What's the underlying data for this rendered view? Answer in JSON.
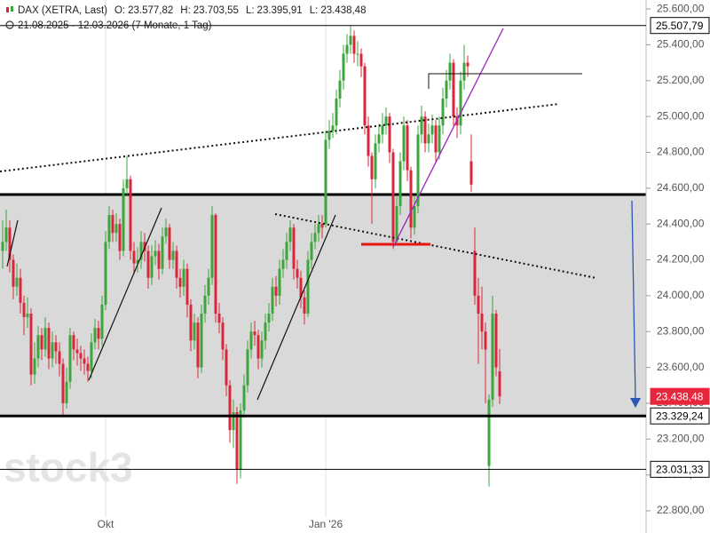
{
  "chart_data": {
    "type": "candlestick",
    "title": "DAX (XETRA, Last)",
    "quote_items": [
      {
        "label": "O:",
        "text": "23.577,82"
      },
      {
        "label": "H:",
        "text": "23.703,55"
      },
      {
        "label": "L:",
        "text": "23.395,91"
      },
      {
        "label": "L:",
        "text": "23.438,48"
      }
    ],
    "subtitle": "21.08.2025 - 12.03.2026 (7 Monate, 1 Tag)",
    "watermark": "stock3",
    "up_color": "#3ca53c",
    "down_color": "#d9263d",
    "xlim": [
      -0.75,
      181.25
    ],
    "xticks": [
      {
        "value": 29,
        "label": "Okt"
      },
      {
        "value": 91,
        "label": "Jan '26"
      }
    ],
    "ylim": [
      22676,
      25650
    ],
    "yticks": [
      {
        "value": 22800,
        "label": "22.800,00"
      },
      {
        "value": 23000,
        "label": "23.000,00"
      },
      {
        "value": 23200,
        "label": "23.200,00"
      },
      {
        "value": 23400,
        "label": "23.400,00"
      },
      {
        "value": 23600,
        "label": "23.600,00"
      },
      {
        "value": 23800,
        "label": "23.800,00"
      },
      {
        "value": 24000,
        "label": "24.000,00"
      },
      {
        "value": 24200,
        "label": "24.200,00"
      },
      {
        "value": 24400,
        "label": "24.400,00"
      },
      {
        "value": 24600,
        "label": "24.600,00"
      },
      {
        "value": 24800,
        "label": "24.800,00"
      },
      {
        "value": 25000,
        "label": "25.000,00"
      },
      {
        "value": 25200,
        "label": "25.200,00"
      },
      {
        "value": 25400,
        "label": "25.400,00"
      },
      {
        "value": 25600,
        "label": "25.600,00"
      }
    ],
    "levels": [
      {
        "value": 25507.79,
        "label": "25.507,79",
        "line_width": 1
      },
      {
        "value": 23438.48,
        "label": "23.438,48",
        "line_width": 0,
        "tag_color": "#e8273c"
      },
      {
        "value": 23329.24,
        "label": "23.329,24",
        "line_width": 3
      },
      {
        "value": 23031.33,
        "label": "23.031,33",
        "line_width": 1
      }
    ],
    "open": [
      24250,
      24300,
      24380,
      24200,
      24050,
      24100,
      23960,
      23880,
      23900,
      23560,
      23650,
      23780,
      23700,
      23820,
      23650,
      23740,
      23690,
      23620,
      23400,
      23520,
      23780,
      23700,
      23680,
      23650,
      23620,
      23580,
      23740,
      23820,
      23760,
      23950,
      24300,
      24450,
      24350,
      24400,
      24250,
      24600,
      24650,
      24250,
      24180,
      24200,
      24300,
      24250,
      24100,
      24220,
      24250,
      24150,
      24330,
      24380,
      24200,
      24250,
      24100,
      24050,
      24150,
      23950,
      23750,
      23850,
      23600,
      23900,
      24000,
      24100,
      24450,
      23900,
      23850,
      23700,
      23500,
      23250,
      23350,
      23030,
      23360,
      23500,
      23700,
      23800,
      23780,
      23650,
      23750,
      23850,
      23900,
      24050,
      24000,
      24150,
      24200,
      24300,
      24380,
      24150,
      24100,
      23990,
      23900,
      24200,
      24300,
      24350,
      24400,
      24400,
      24870,
      24920,
      24950,
      25100,
      25200,
      25350,
      25400,
      25450,
      25350,
      25350,
      25280,
      24950,
      24780,
      24650,
      24850,
      24900,
      24950,
      25000,
      24800,
      24300,
      24500,
      24750,
      24950,
      24700,
      24380,
      24500,
      24900,
      25000,
      24850,
      24900,
      24950,
      24800,
      24950,
      25100,
      25200,
      25300,
      25000,
      24950,
      25200,
      25300,
      24750,
      24250,
      24000,
      23900,
      23800,
      23050,
      23420,
      23900,
      23577.82
    ],
    "high": [
      24420,
      24480,
      24420,
      24230,
      24180,
      24150,
      24000,
      23990,
      23930,
      23740,
      23830,
      23820,
      23880,
      23850,
      23800,
      23780,
      23740,
      23650,
      23600,
      23820,
      23800,
      23760,
      23720,
      23700,
      23660,
      23790,
      23870,
      23860,
      24000,
      24360,
      24500,
      24480,
      24460,
      24430,
      24650,
      24780,
      24670,
      24300,
      24270,
      24360,
      24350,
      24280,
      24280,
      24310,
      24290,
      24380,
      24430,
      24400,
      24300,
      24280,
      24150,
      24200,
      24180,
      23980,
      23900,
      23880,
      23950,
      24060,
      24150,
      24500,
      24460,
      23960,
      23880,
      23730,
      23530,
      23420,
      23380,
      23400,
      23560,
      23750,
      23850,
      23860,
      23810,
      23800,
      23900,
      23960,
      24100,
      24110,
      24200,
      24260,
      24350,
      24420,
      24400,
      24200,
      24140,
      24030,
      24250,
      24350,
      24400,
      24450,
      24450,
      24920,
      24980,
      25020,
      25150,
      25260,
      25400,
      25460,
      25507.79,
      25480,
      25420,
      25380,
      25300,
      25000,
      24800,
      24900,
      24960,
      25020,
      25050,
      25020,
      24820,
      24560,
      24800,
      25000,
      24980,
      24720,
      24560,
      24950,
      25060,
      25030,
      24960,
      25010,
      24980,
      25000,
      25160,
      25260,
      25350,
      25320,
      25050,
      25250,
      25400,
      25340,
      24900,
      24380,
      24100,
      24050,
      23850,
      23450,
      24000,
      23920,
      23703.55
    ],
    "low": [
      24150,
      24250,
      24130,
      23980,
      24000,
      23900,
      23780,
      23820,
      23500,
      23510,
      23600,
      23640,
      23660,
      23590,
      23600,
      23620,
      23550,
      23330,
      23370,
      23480,
      23640,
      23610,
      23580,
      23560,
      23520,
      23540,
      23700,
      23700,
      23720,
      23920,
      24260,
      24300,
      24300,
      24200,
      24220,
      24560,
      24200,
      24120,
      24130,
      24150,
      24190,
      24040,
      24060,
      24170,
      24090,
      24120,
      24290,
      24150,
      24150,
      24040,
      23990,
      24000,
      23880,
      23690,
      23700,
      23540,
      23570,
      23850,
      23950,
      24060,
      23850,
      23790,
      23640,
      23440,
      23180,
      23150,
      22950,
      22980,
      23320,
      23460,
      23650,
      23720,
      23590,
      23600,
      23700,
      23800,
      23860,
      23940,
      23950,
      24100,
      24150,
      24250,
      24090,
      24040,
      23930,
      23840,
      23880,
      24150,
      24260,
      24300,
      24320,
      24380,
      24820,
      24880,
      24900,
      25050,
      25150,
      25300,
      25350,
      25300,
      25280,
      25220,
      24900,
      24720,
      24400,
      24600,
      24800,
      24850,
      24900,
      24740,
      24260,
      24280,
      24450,
      24700,
      24640,
      24320,
      24340,
      24460,
      24850,
      24800,
      24800,
      24850,
      24750,
      24760,
      24900,
      25050,
      25150,
      24950,
      24880,
      24900,
      25150,
      25220,
      24580,
      23950,
      23620,
      23700,
      23400,
      22935,
      23380,
      23550,
      23395.91
    ],
    "close": [
      24300,
      24380,
      24200,
      24050,
      24100,
      23960,
      23880,
      23900,
      23560,
      23650,
      23780,
      23700,
      23820,
      23650,
      23740,
      23690,
      23620,
      23400,
      23520,
      23780,
      23700,
      23680,
      23650,
      23620,
      23580,
      23740,
      23820,
      23760,
      23950,
      24300,
      24450,
      24350,
      24400,
      24250,
      24600,
      24650,
      24250,
      24180,
      24200,
      24300,
      24250,
      24100,
      24220,
      24250,
      24150,
      24330,
      24380,
      24200,
      24250,
      24100,
      24050,
      24150,
      23950,
      23750,
      23850,
      23600,
      23900,
      24000,
      24100,
      24450,
      23900,
      23850,
      23700,
      23500,
      23250,
      23350,
      23030,
      23360,
      23500,
      23700,
      23800,
      23780,
      23650,
      23750,
      23850,
      23900,
      24050,
      24000,
      24150,
      24200,
      24300,
      24380,
      24150,
      24100,
      23990,
      23900,
      24200,
      24300,
      24350,
      24400,
      24380,
      24870,
      24920,
      24950,
      25100,
      25200,
      25350,
      25400,
      25450,
      25350,
      25350,
      25280,
      24950,
      24780,
      24650,
      24850,
      24900,
      24950,
      25000,
      24800,
      24300,
      24500,
      24750,
      24950,
      24700,
      24380,
      24500,
      24900,
      25000,
      24850,
      24900,
      24950,
      24800,
      24950,
      25100,
      25200,
      25300,
      25000,
      24950,
      25200,
      25300,
      25280,
      24620,
      24000,
      23900,
      23800,
      23700,
      23420,
      23900,
      23600,
      23438.48
    ]
  }
}
